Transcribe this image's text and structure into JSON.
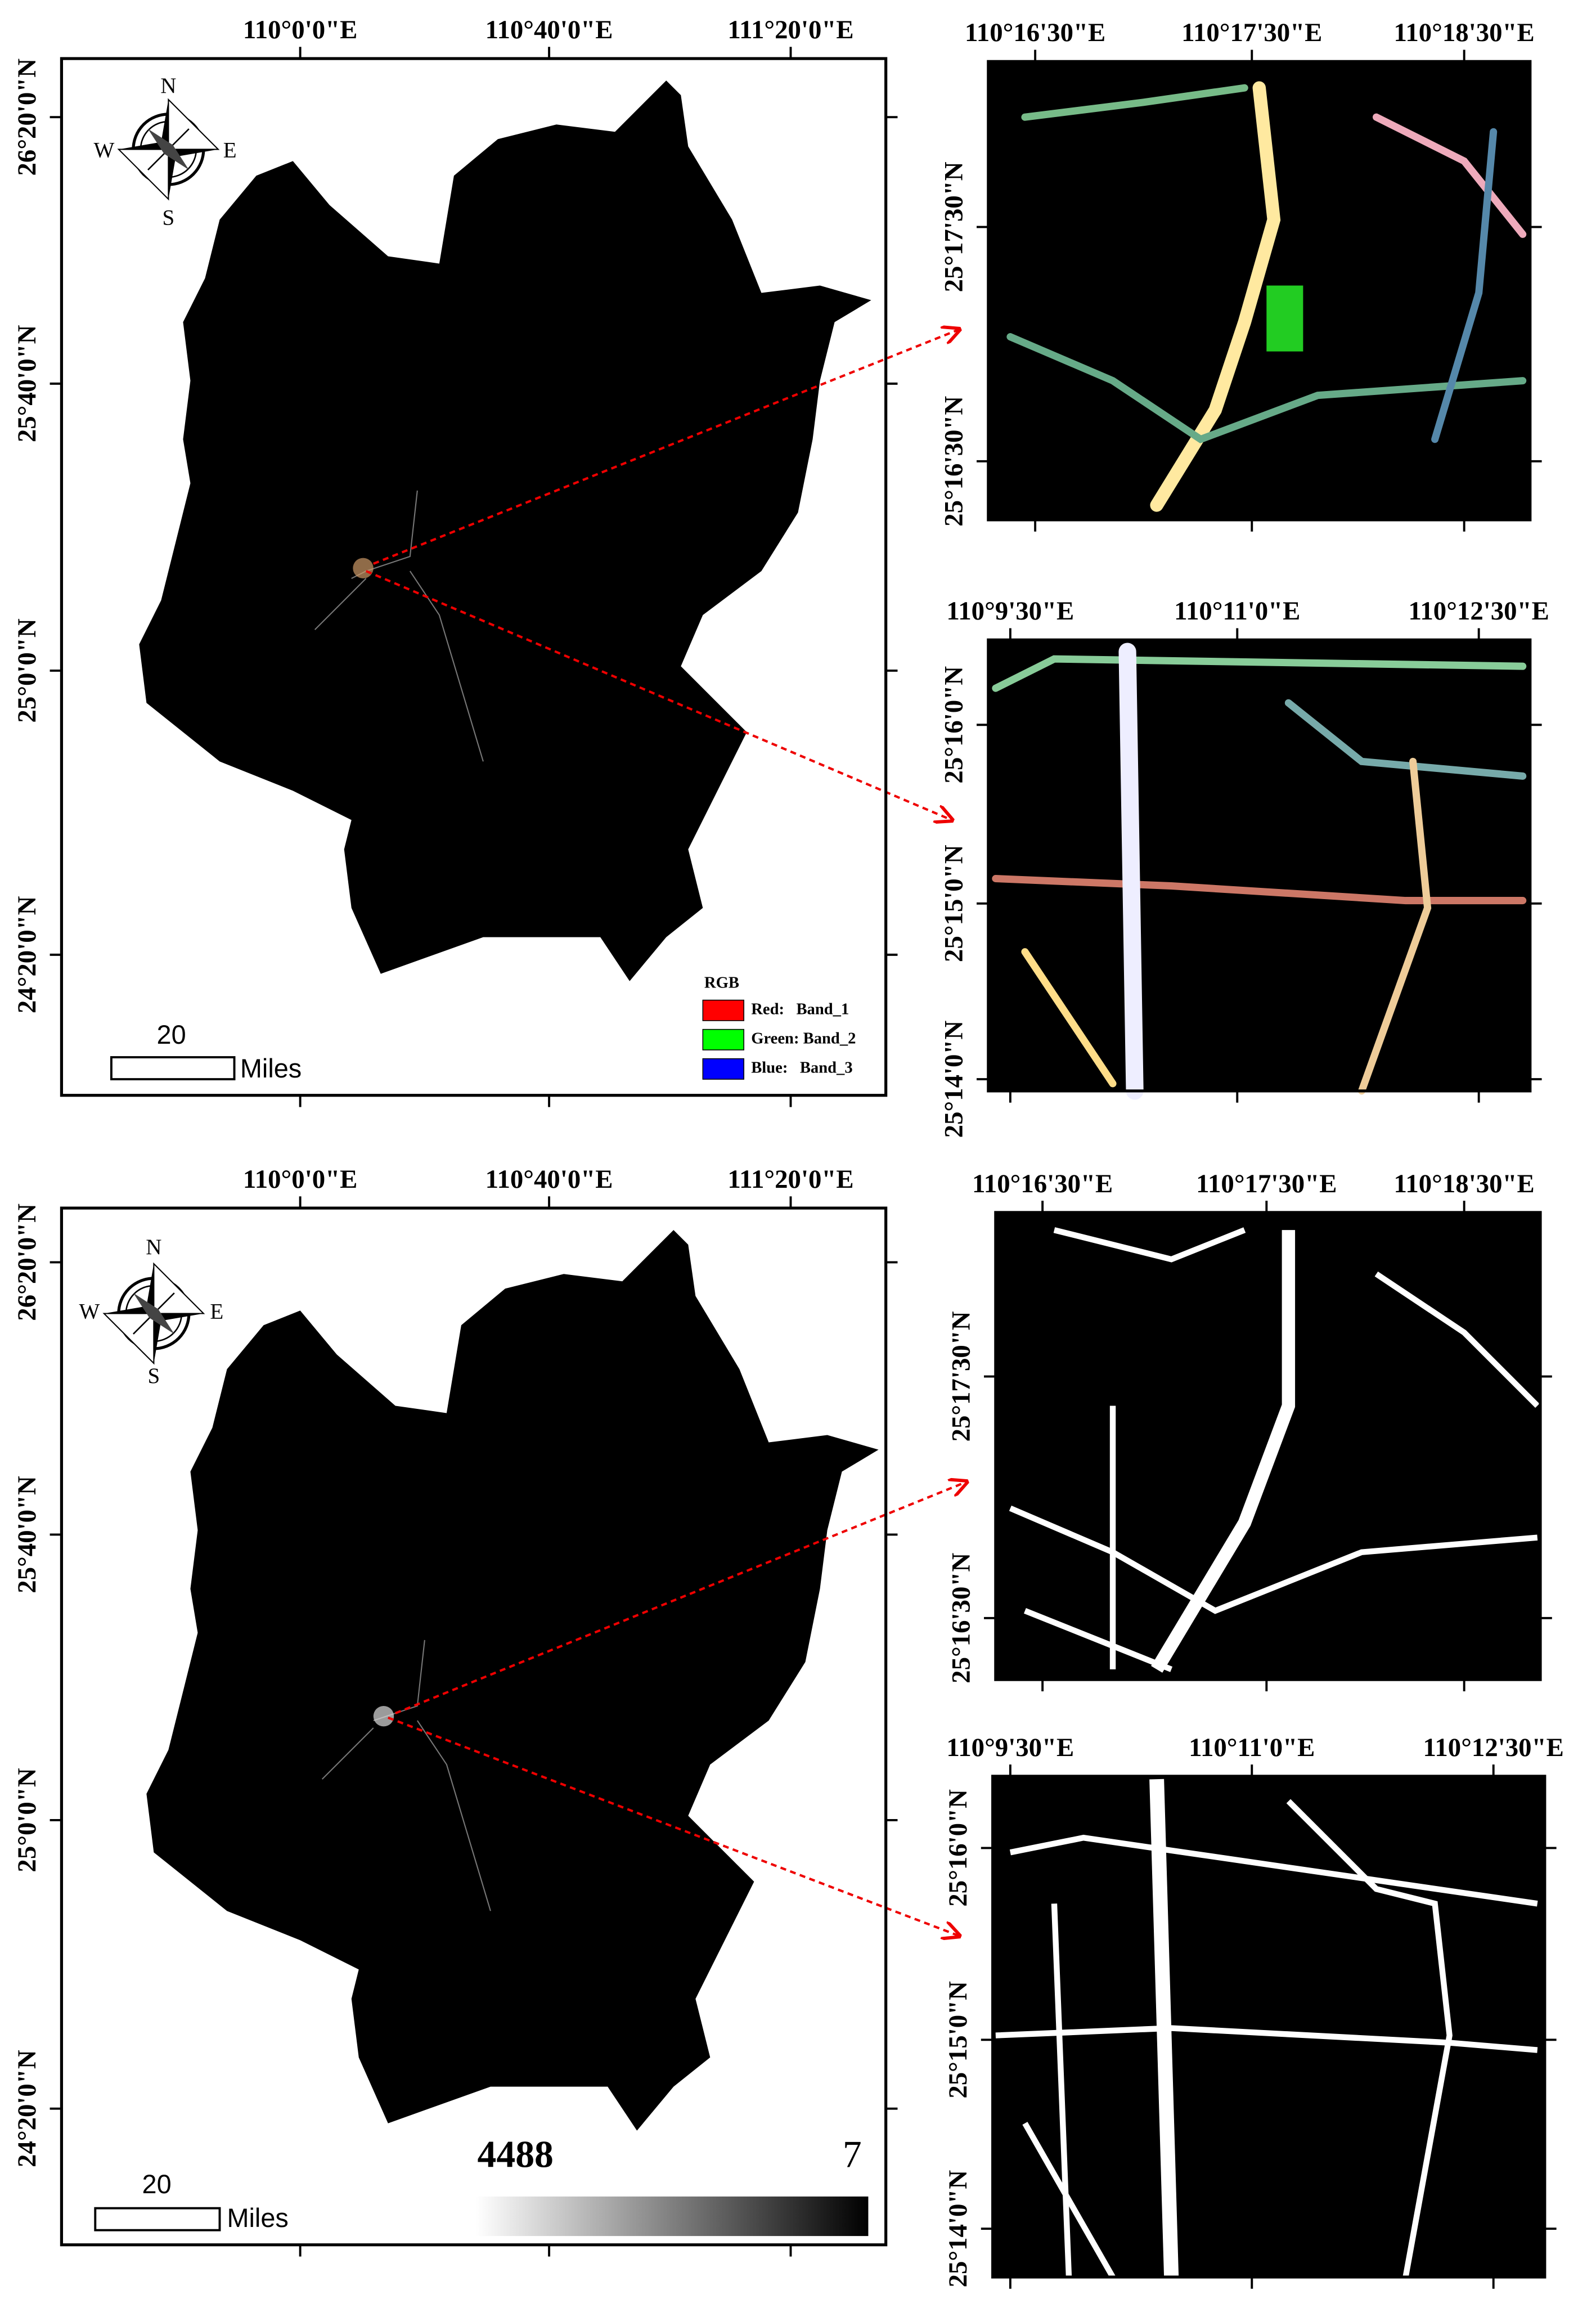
{
  "maps": [
    {
      "lon_labels": [
        "110°0'0\"E",
        "110°40'0\"E",
        "111°20'0\"E"
      ],
      "lat_labels": [
        "26°20'0\"N",
        "25°40'0\"N",
        "25°0'0\"N",
        "24°20'0\"N"
      ],
      "compass": {
        "n": "N",
        "s": "S",
        "e": "E",
        "w": "W"
      },
      "scale_bar": {
        "value": 20,
        "unit": "Miles"
      },
      "legend": {
        "title": "RGB",
        "items": [
          "Red:   Band_1",
          "Green: Band_2",
          "Blue:   Band_3"
        ]
      }
    },
    {
      "lon_labels": [
        "110°0'0\"E",
        "110°40'0\"E",
        "111°20'0\"E"
      ],
      "lat_labels": [
        "26°20'0\"N",
        "25°40'0\"N",
        "25°0'0\"N",
        "24°20'0\"N"
      ],
      "compass": {
        "n": "N",
        "s": "S",
        "e": "E",
        "w": "W"
      },
      "scale_bar": {
        "value": 20,
        "unit": "Miles"
      },
      "colorbar": {
        "high": 4488,
        "low": 7
      }
    }
  ],
  "insets": [
    {
      "lon_labels": [
        "110°16'30\"E",
        "110°17'30\"E",
        "110°18'30\"E"
      ],
      "lat_labels": [
        "25°17'30\"N",
        "25°16'30\"N"
      ]
    },
    {
      "lon_labels": [
        "110°9'30\"E",
        "110°11'0\"E",
        "110°12'30\"E"
      ],
      "lat_labels": [
        "25°16'0\"N",
        "25°15'0\"N",
        "25°14'0\"N"
      ]
    },
    {
      "lon_labels": [
        "110°16'30\"E",
        "110°17'30\"E",
        "110°18'30\"E"
      ],
      "lat_labels": [
        "25°17'30\"N",
        "25°16'30\"N"
      ]
    },
    {
      "lon_labels": [
        "110°9'30\"E",
        "110°11'0\"E",
        "110°12'30\"E"
      ],
      "lat_labels": [
        "25°16'0\"N",
        "25°15'0\"N",
        "25°14'0\"N"
      ]
    }
  ]
}
